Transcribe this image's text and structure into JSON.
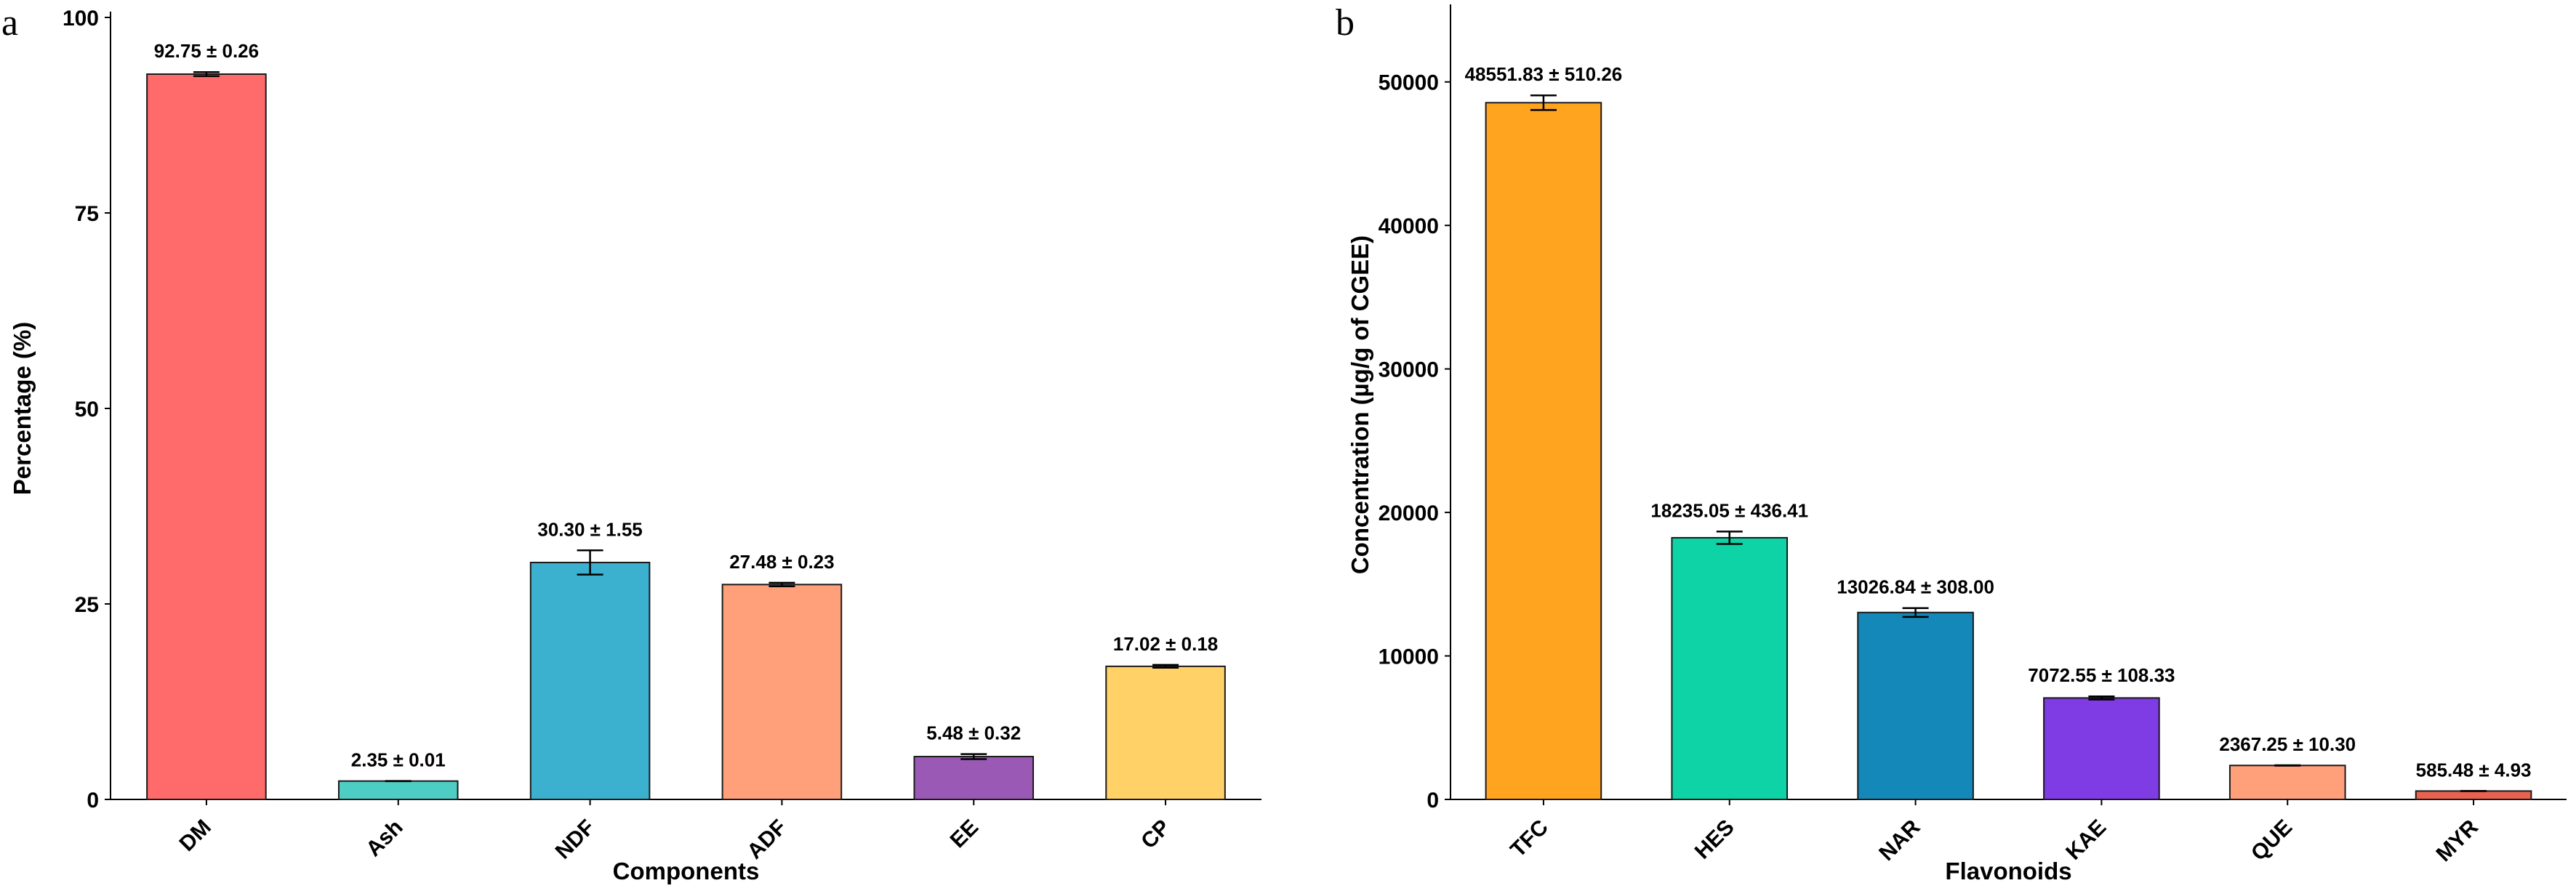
{
  "figure": {
    "panel_a_label": "a",
    "panel_b_label": "b"
  },
  "chart_data": [
    {
      "type": "bar",
      "title": "",
      "xlabel": "Components",
      "ylabel": "Percentage (%)",
      "ylim": [
        0,
        100
      ],
      "yticks": [
        "0",
        "25",
        "50",
        "75",
        "100"
      ],
      "ytick_values": [
        0,
        25,
        50,
        75,
        100
      ],
      "grid": false,
      "categories": [
        "DM",
        "Ash",
        "NDF",
        "ADF",
        "EE",
        "CP"
      ],
      "values": [
        92.75,
        2.35,
        30.3,
        27.48,
        5.48,
        17.02
      ],
      "errors": [
        0.26,
        0.01,
        1.55,
        0.23,
        0.32,
        0.18
      ],
      "data_labels": [
        "92.75 ± 0.26",
        "2.35 ± 0.01",
        "30.30 ± 1.55",
        "27.48 ± 0.23",
        "5.48 ± 0.32",
        "17.02 ± 0.18"
      ],
      "colors": [
        "#FF6B6B",
        "#4ECDC4",
        "#3BB0CF",
        "#FFA07A",
        "#9B59B6",
        "#FFD166"
      ]
    },
    {
      "type": "bar",
      "title": "",
      "xlabel": "Flavonoids",
      "ylabel": "Concentration (µg/g of CGEE)",
      "ylim": [
        0,
        55000
      ],
      "yticks": [
        "0",
        "10000",
        "20000",
        "30000",
        "40000",
        "50000"
      ],
      "ytick_values": [
        0,
        10000,
        20000,
        30000,
        40000,
        50000
      ],
      "grid": false,
      "categories": [
        "TFC",
        "HES",
        "NAR",
        "KAE",
        "QUE",
        "MYR"
      ],
      "values": [
        48551.83,
        18235.05,
        13026.84,
        7072.55,
        2367.25,
        585.48
      ],
      "errors": [
        510.26,
        436.41,
        308.0,
        108.33,
        10.3,
        4.93
      ],
      "data_labels": [
        "48551.83 ± 510.26",
        "18235.05 ± 436.41",
        "13026.84 ± 308.00",
        "7072.55 ± 108.33",
        "2367.25 ± 10.30",
        "585.48 ± 4.93"
      ],
      "colors": [
        "#FFA41F",
        "#0ED3A6",
        "#1488B8",
        "#7F3BE4",
        "#FFA07A",
        "#E8624F"
      ]
    }
  ]
}
